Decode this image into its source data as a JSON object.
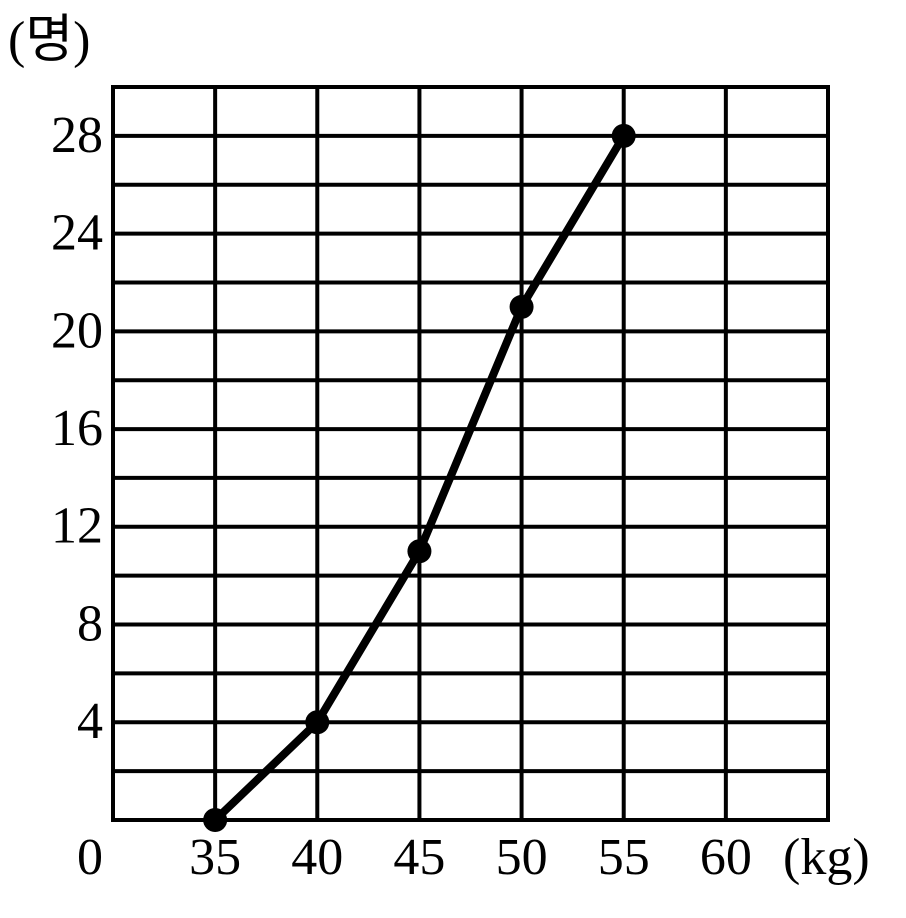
{
  "chart_data": {
    "type": "line",
    "y_axis_label": "(명)",
    "x_axis_label": "(kg)",
    "origin_label": "0",
    "x": [
      35,
      40,
      45,
      50,
      55
    ],
    "series": [
      {
        "color": "#000000",
        "values": [
          0,
          4,
          11,
          21,
          28
        ]
      }
    ],
    "xlim": [
      30,
      65
    ],
    "ylim": [
      0,
      30
    ],
    "xticks": [
      35,
      40,
      45,
      50,
      55,
      60
    ],
    "yticks": [
      4,
      8,
      12,
      16,
      20,
      24,
      28
    ],
    "x_grid": [
      30,
      35,
      40,
      45,
      50,
      55,
      60,
      65
    ],
    "y_grid": [
      0,
      2,
      4,
      6,
      8,
      10,
      12,
      14,
      16,
      18,
      20,
      22,
      24,
      26,
      28,
      30
    ],
    "grid": true
  }
}
